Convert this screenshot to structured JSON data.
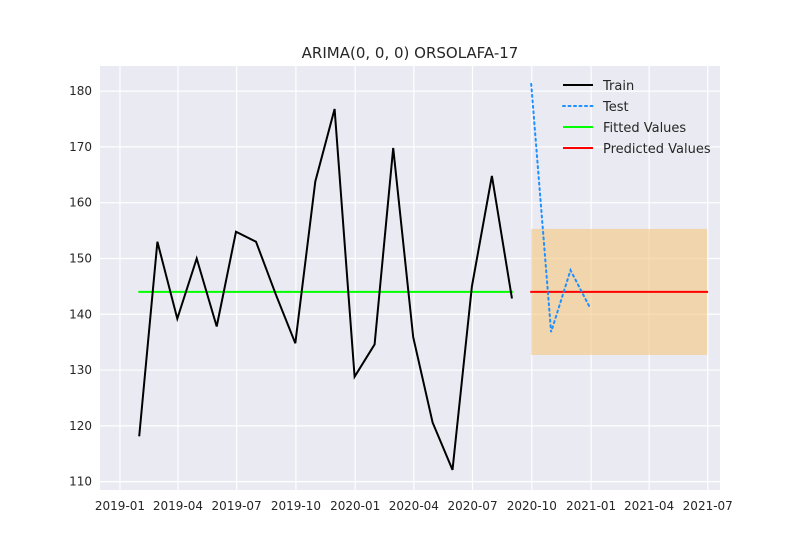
{
  "chart_data": {
    "type": "line",
    "title": "ARIMA(0, 0, 0) ORSOLAFA-17",
    "xlabel": "",
    "ylabel": "",
    "xlim": [
      "2018-12-01",
      "2021-07-20"
    ],
    "ylim": [
      108.5,
      184.5
    ],
    "x_ticks": [
      {
        "date": "2019-01-01",
        "label": "2019-01"
      },
      {
        "date": "2019-04-01",
        "label": "2019-04"
      },
      {
        "date": "2019-07-01",
        "label": "2019-07"
      },
      {
        "date": "2019-10-01",
        "label": "2019-10"
      },
      {
        "date": "2020-01-01",
        "label": "2020-01"
      },
      {
        "date": "2020-04-01",
        "label": "2020-04"
      },
      {
        "date": "2020-07-01",
        "label": "2020-07"
      },
      {
        "date": "2020-10-01",
        "label": "2020-10"
      },
      {
        "date": "2021-01-01",
        "label": "2021-01"
      },
      {
        "date": "2021-04-01",
        "label": "2021-04"
      },
      {
        "date": "2021-07-01",
        "label": "2021-07"
      }
    ],
    "y_ticks": [
      110,
      120,
      130,
      140,
      150,
      160,
      170,
      180
    ],
    "grid": true,
    "background": "#eaeaf2",
    "legend_position": "upper right",
    "series": [
      {
        "name": "Train",
        "color": "#000000",
        "style": "solid",
        "x": [
          "2019-01-31",
          "2019-02-28",
          "2019-03-31",
          "2019-04-30",
          "2019-05-31",
          "2019-06-30",
          "2019-07-31",
          "2019-08-31",
          "2019-09-30",
          "2019-10-31",
          "2019-11-30",
          "2019-12-31",
          "2020-01-31",
          "2020-02-29",
          "2020-03-31",
          "2020-04-30",
          "2020-05-31",
          "2020-06-30",
          "2020-07-31",
          "2020-08-31"
        ],
        "y": [
          118.3,
          153.0,
          139.2,
          150.0,
          137.8,
          154.8,
          153.0,
          143.5,
          134.8,
          163.8,
          176.8,
          128.8,
          134.6,
          169.8,
          135.9,
          120.6,
          112.1,
          145.0,
          164.8,
          143.0
        ]
      },
      {
        "name": "Test",
        "color": "#1e90ff",
        "style": "dotted",
        "x": [
          "2020-09-30",
          "2020-10-31",
          "2020-11-30",
          "2020-12-31"
        ],
        "y": [
          181.3,
          136.8,
          147.9,
          141.0
        ]
      },
      {
        "name": "Fitted Values",
        "color": "#00ff00",
        "style": "solid",
        "x": [
          "2019-01-31",
          "2020-08-31"
        ],
        "y": [
          144.0,
          144.0
        ]
      },
      {
        "name": "Predicted Values",
        "color": "#ff0000",
        "style": "solid",
        "x": [
          "2020-09-30",
          "2021-06-30"
        ],
        "y": [
          144.0,
          144.0
        ]
      }
    ],
    "confidence_band": {
      "color": "#f5c77e",
      "x": [
        "2020-09-30",
        "2021-06-30"
      ],
      "lower": 132.7,
      "upper": 155.3
    }
  }
}
